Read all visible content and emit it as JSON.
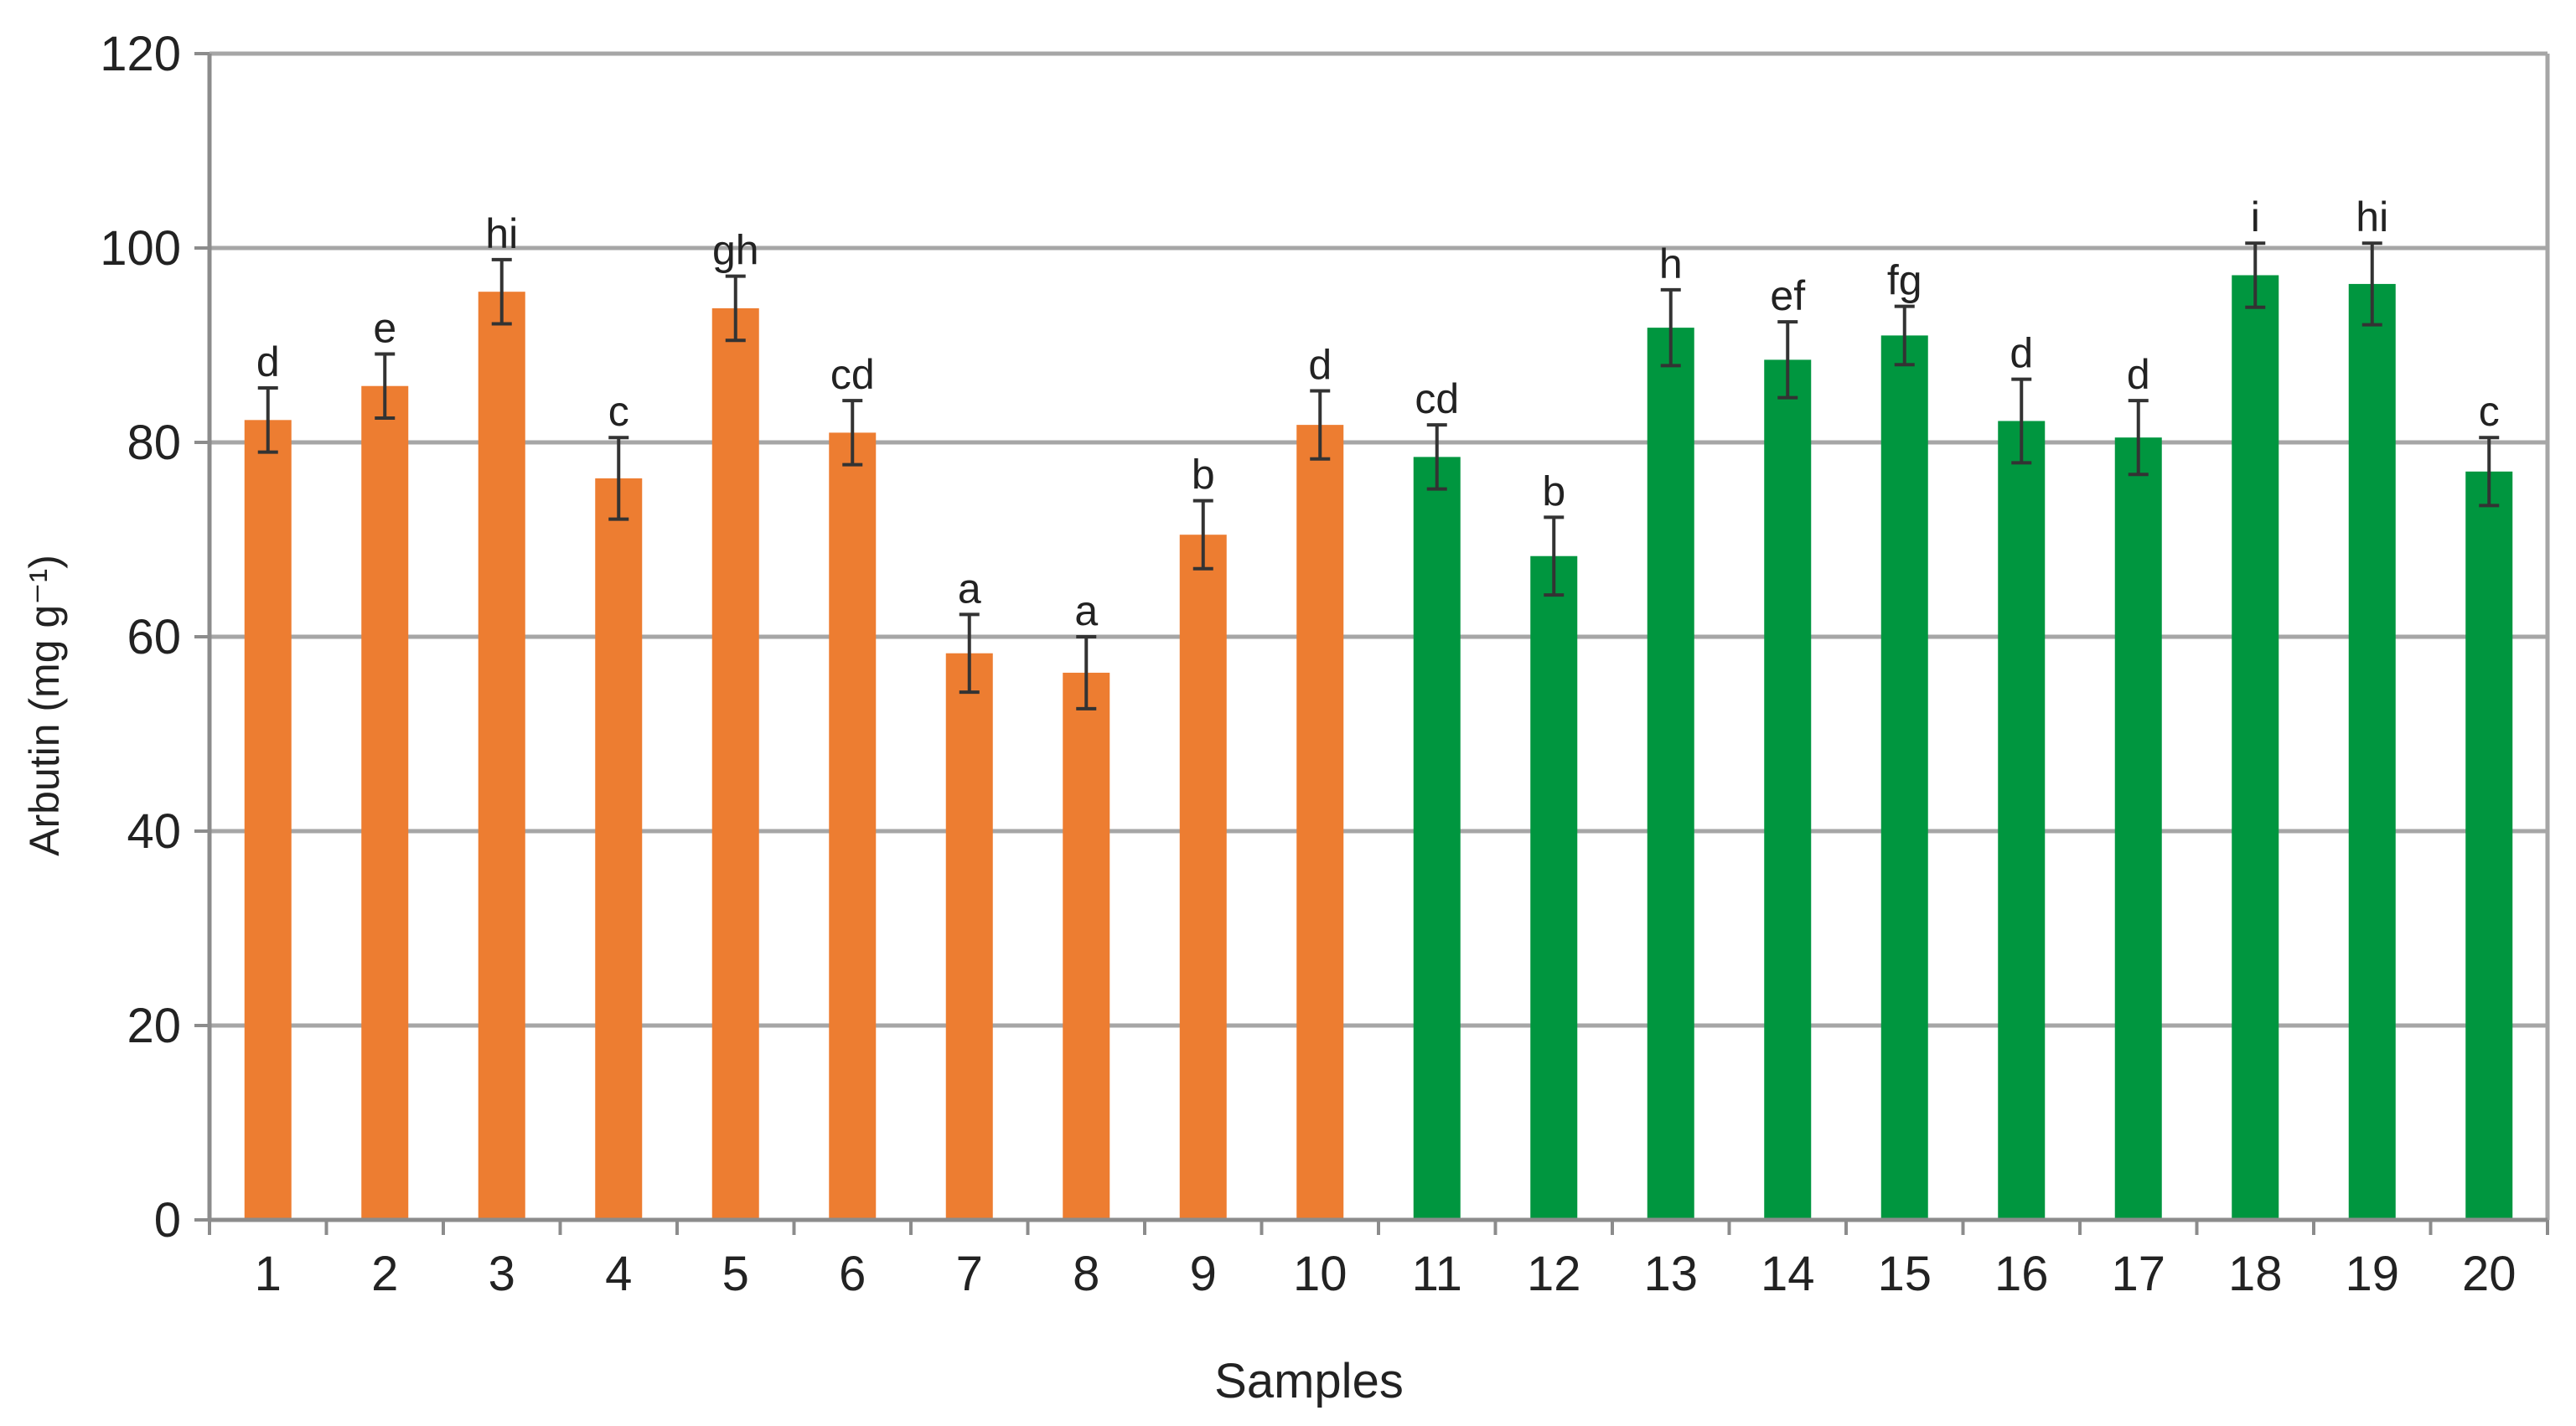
{
  "chart_data": {
    "type": "bar",
    "xlabel": "Samples",
    "ylabel": "Arbutin (mg g⁻¹)",
    "ylim": [
      0,
      120
    ],
    "yticks": [
      0,
      20,
      40,
      60,
      80,
      100,
      120
    ],
    "grid": true,
    "legend": "none",
    "categories": [
      "1",
      "2",
      "3",
      "4",
      "5",
      "6",
      "7",
      "8",
      "9",
      "10",
      "11",
      "12",
      "13",
      "14",
      "15",
      "16",
      "17",
      "18",
      "19",
      "20"
    ],
    "values": [
      82.3,
      85.8,
      95.5,
      76.3,
      93.8,
      81.0,
      58.3,
      56.3,
      70.5,
      81.8,
      78.5,
      68.3,
      91.8,
      88.5,
      91.0,
      82.2,
      80.5,
      97.2,
      96.3,
      77.0
    ],
    "errors": [
      3.3,
      3.3,
      3.3,
      4.2,
      3.3,
      3.3,
      4.0,
      3.7,
      3.5,
      3.5,
      3.3,
      4.0,
      3.9,
      3.9,
      3.0,
      4.3,
      3.8,
      3.3,
      4.2,
      3.5
    ],
    "annotations": [
      "d",
      "e",
      "hi",
      "c",
      "gh",
      "cd",
      "a",
      "a",
      "b",
      "d",
      "cd",
      "b",
      "h",
      "ef",
      "fg",
      "d",
      "d",
      "i",
      "hi",
      "c"
    ],
    "bar_colors": [
      "#ed7d31",
      "#ed7d31",
      "#ed7d31",
      "#ed7d31",
      "#ed7d31",
      "#ed7d31",
      "#ed7d31",
      "#ed7d31",
      "#ed7d31",
      "#ed7d31",
      "#00963f",
      "#00963f",
      "#00963f",
      "#00963f",
      "#00963f",
      "#00963f",
      "#00963f",
      "#00963f",
      "#00963f",
      "#00963f"
    ],
    "colors": {
      "orange": "#ed7d31",
      "green": "#00963f",
      "grid": "#a6a6a6",
      "axis": "#8c8c8c",
      "error_bar": "#333333"
    }
  }
}
